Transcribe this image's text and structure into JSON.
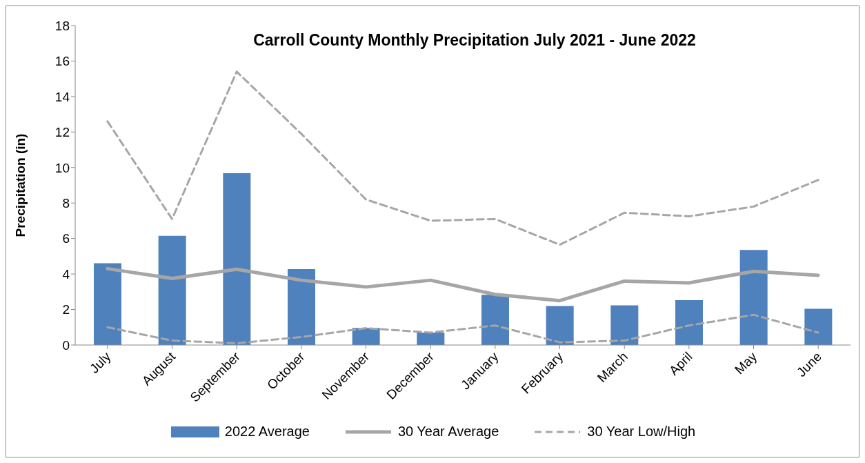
{
  "chart_data": {
    "type": "bar",
    "title": "Carroll County Monthly Precipitation July 2021 - June 2022",
    "ylabel": "Precipitation (in)",
    "categories": [
      "July",
      "August",
      "September",
      "October",
      "November",
      "December",
      "January",
      "February",
      "March",
      "April",
      "May",
      "June"
    ],
    "series": [
      {
        "name": "2022 Average",
        "color": "#4f81bd",
        "values": [
          4.61,
          6.15,
          9.68,
          4.28,
          0.96,
          0.7,
          2.83,
          2.2,
          2.24,
          2.53,
          5.36,
          2.04
        ]
      },
      {
        "name": "30 Year Average",
        "type": "line",
        "color": "#a6a6a6",
        "line_style": "solid",
        "values": [
          4.3,
          3.75,
          4.27,
          3.65,
          3.27,
          3.65,
          2.85,
          2.5,
          3.6,
          3.5,
          4.15,
          3.93
        ]
      },
      {
        "name": "30 Year Low/High",
        "type": "line",
        "color": "#a6a6a6",
        "line_style": "dashed",
        "values": [
          12.6,
          7.1,
          15.4,
          11.9,
          8.2,
          7.0,
          7.1,
          5.65,
          7.45,
          7.25,
          7.8,
          9.3
        ]
      },
      {
        "type": "line",
        "color": "#a6a6a6",
        "line_style": "dashed",
        "values": [
          1.0,
          0.25,
          0.1,
          0.45,
          0.95,
          0.7,
          1.1,
          0.15,
          0.25,
          1.1,
          1.7,
          0.7
        ]
      }
    ],
    "ylim": [
      0,
      18
    ],
    "yticks": [
      0,
      2,
      4,
      6,
      8,
      10,
      12,
      14,
      16,
      18
    ],
    "grid": false,
    "legend": "bottom",
    "marker": "none"
  }
}
